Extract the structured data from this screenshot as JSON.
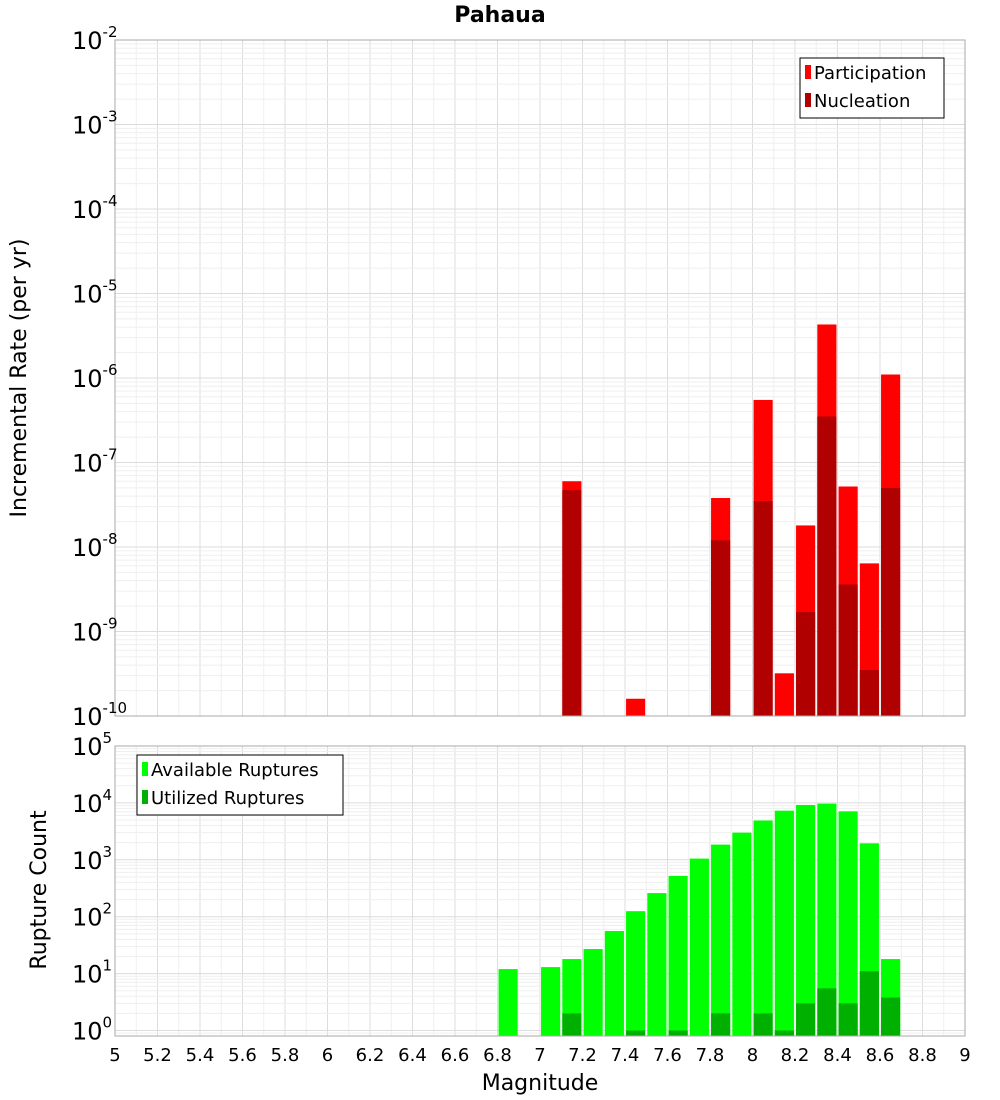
{
  "chart_data": [
    {
      "type": "bar",
      "title": "Pahaua",
      "xlabel": "",
      "ylabel": "Incremental Rate (per yr)",
      "yscale": "log",
      "ylim": [
        1e-10,
        0.01
      ],
      "xlim": [
        5,
        9
      ],
      "grid": true,
      "legend_position": "top-right",
      "y_ticks": [
        {
          "base": "10",
          "exp": "-2"
        },
        {
          "base": "10",
          "exp": "-3"
        },
        {
          "base": "10",
          "exp": "-4"
        },
        {
          "base": "10",
          "exp": "-5"
        },
        {
          "base": "10",
          "exp": "-6"
        },
        {
          "base": "10",
          "exp": "-7"
        },
        {
          "base": "10",
          "exp": "-8"
        },
        {
          "base": "10",
          "exp": "-9"
        },
        {
          "base": "10",
          "exp": "-10"
        }
      ],
      "series": [
        {
          "name": "Participation",
          "color": "#ff0000",
          "points": [
            {
              "x": 7.15,
              "y": 6e-08
            },
            {
              "x": 7.45,
              "y": 1.6e-10
            },
            {
              "x": 7.85,
              "y": 3.8e-08
            },
            {
              "x": 8.05,
              "y": 5.5e-07
            },
            {
              "x": 8.15,
              "y": 3.2e-10
            },
            {
              "x": 8.25,
              "y": 1.8e-08
            },
            {
              "x": 8.35,
              "y": 4.3e-06
            },
            {
              "x": 8.45,
              "y": 5.2e-08
            },
            {
              "x": 8.55,
              "y": 6.4e-09
            },
            {
              "x": 8.65,
              "y": 1.1e-06
            }
          ]
        },
        {
          "name": "Nucleation",
          "color": "#b00000",
          "points": [
            {
              "x": 7.15,
              "y": 4.7e-08
            },
            {
              "x": 7.85,
              "y": 1.2e-08
            },
            {
              "x": 8.05,
              "y": 3.5e-08
            },
            {
              "x": 8.25,
              "y": 1.7e-09
            },
            {
              "x": 8.35,
              "y": 3.5e-07
            },
            {
              "x": 8.45,
              "y": 3.6e-09
            },
            {
              "x": 8.55,
              "y": 3.5e-10
            },
            {
              "x": 8.65,
              "y": 5e-08
            }
          ]
        }
      ]
    },
    {
      "type": "bar",
      "title": "",
      "xlabel": "Magnitude",
      "ylabel": "Rupture Count",
      "yscale": "log",
      "ylim": [
        0.8,
        100000
      ],
      "xlim": [
        5,
        9
      ],
      "grid": true,
      "legend_position": "top-left",
      "x_tick_labels": [
        "5",
        "5.2",
        "5.4",
        "5.6",
        "5.8",
        "6",
        "6.2",
        "6.4",
        "6.6",
        "6.8",
        "7",
        "7.2",
        "7.4",
        "7.6",
        "7.8",
        "8",
        "8.2",
        "8.4",
        "8.6",
        "8.8",
        "9"
      ],
      "y_ticks": [
        {
          "base": "10",
          "exp": "5"
        },
        {
          "base": "10",
          "exp": "4"
        },
        {
          "base": "10",
          "exp": "3"
        },
        {
          "base": "10",
          "exp": "2"
        },
        {
          "base": "10",
          "exp": "1"
        },
        {
          "base": "10",
          "exp": "0"
        }
      ],
      "series": [
        {
          "name": "Available Ruptures",
          "color": "#00ff00",
          "points": [
            {
              "x": 6.85,
              "y": 12
            },
            {
              "x": 7.05,
              "y": 13
            },
            {
              "x": 7.15,
              "y": 18
            },
            {
              "x": 7.25,
              "y": 27
            },
            {
              "x": 7.35,
              "y": 56
            },
            {
              "x": 7.45,
              "y": 125
            },
            {
              "x": 7.55,
              "y": 260
            },
            {
              "x": 7.65,
              "y": 520
            },
            {
              "x": 7.75,
              "y": 1050
            },
            {
              "x": 7.85,
              "y": 1850
            },
            {
              "x": 7.95,
              "y": 3000
            },
            {
              "x": 8.05,
              "y": 4900
            },
            {
              "x": 8.15,
              "y": 7300
            },
            {
              "x": 8.25,
              "y": 9200
            },
            {
              "x": 8.35,
              "y": 9700
            },
            {
              "x": 8.45,
              "y": 7100
            },
            {
              "x": 8.55,
              "y": 1950
            },
            {
              "x": 8.65,
              "y": 18
            }
          ]
        },
        {
          "name": "Utilized Ruptures",
          "color": "#00b000",
          "points": [
            {
              "x": 7.15,
              "y": 2
            },
            {
              "x": 7.45,
              "y": 1
            },
            {
              "x": 7.65,
              "y": 1
            },
            {
              "x": 7.85,
              "y": 2
            },
            {
              "x": 8.05,
              "y": 2
            },
            {
              "x": 8.15,
              "y": 1
            },
            {
              "x": 8.25,
              "y": 3
            },
            {
              "x": 8.35,
              "y": 5.5
            },
            {
              "x": 8.45,
              "y": 3
            },
            {
              "x": 8.55,
              "y": 11
            },
            {
              "x": 8.65,
              "y": 3.8
            }
          ]
        }
      ]
    }
  ]
}
